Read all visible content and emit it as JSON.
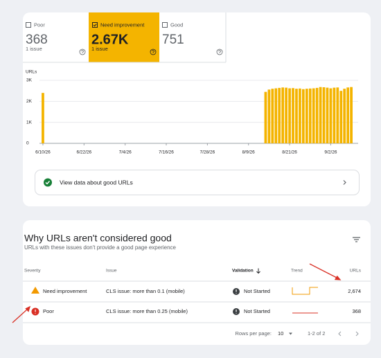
{
  "tabs": [
    {
      "label": "Poor",
      "count": "368",
      "sub": "1 issue"
    },
    {
      "label": "Need improvement",
      "count": "2.67K",
      "sub": "1 issue"
    },
    {
      "label": "Good",
      "count": "751"
    }
  ],
  "chart_data": {
    "type": "bar",
    "y_label": "URLs",
    "color": "#f4b400",
    "grid": true,
    "x": [
      "6/10/26",
      "8/14/26",
      "8/15/26",
      "8/16/26",
      "8/17/26",
      "8/18/26",
      "8/19/26",
      "8/20/26",
      "8/21/26",
      "8/22/26",
      "8/23/26",
      "8/24/26",
      "8/25/26",
      "8/26/26",
      "8/27/26",
      "8/28/26",
      "8/29/26",
      "8/30/26",
      "8/31/26",
      "9/1/26",
      "9/2/26",
      "9/3/26",
      "9/4/26",
      "9/5/26",
      "9/6/26",
      "9/7/26",
      "9/8/26"
    ],
    "values": [
      2400,
      2450,
      2560,
      2600,
      2620,
      2640,
      2660,
      2650,
      2620,
      2630,
      2600,
      2610,
      2580,
      2600,
      2610,
      2620,
      2640,
      2680,
      2670,
      2650,
      2620,
      2650,
      2660,
      2500,
      2600,
      2660,
      2680
    ],
    "xlim": [
      "6/9/26",
      "9/10/26"
    ],
    "xticks": [
      "6/10/26",
      "6/22/26",
      "7/4/26",
      "7/16/26",
      "7/28/26",
      "8/9/26",
      "8/21/26",
      "9/2/26"
    ],
    "ylim": [
      0,
      3000
    ],
    "yticks": [
      0,
      {
        "value": 1000,
        "label": "1K"
      },
      {
        "value": 2000,
        "label": "2K"
      },
      {
        "value": 3000,
        "label": "3K"
      }
    ]
  },
  "link": "View data about good URLs",
  "table": {
    "title": "Why URLs aren't considered good",
    "subtitle": "URLs with these issues don't provide a good page experience",
    "headers": [
      "Severity",
      "Issue",
      "Validation",
      "Trend",
      "URLs"
    ],
    "rows": [
      [
        "Need improvement",
        "CLS issue: more than 0.1 (mobile)",
        "Not Started",
        "2,674"
      ],
      [
        "Poor",
        "CLS issue: more than 0.25 (mobile)",
        "Not Started",
        "368"
      ]
    ],
    "footer": {
      "rows_per_page": "Rows per page:",
      "page_size": "10",
      "range": "1-2 of 2"
    }
  }
}
